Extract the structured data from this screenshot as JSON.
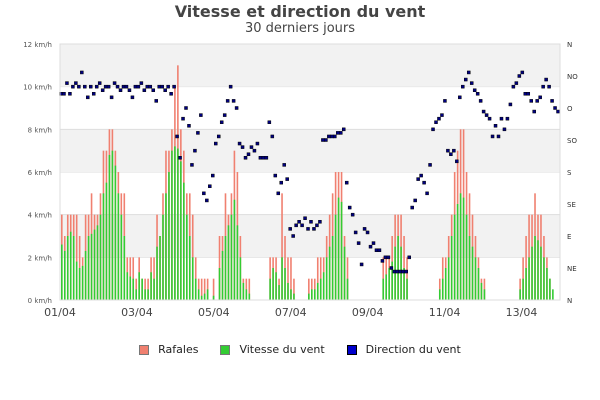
{
  "chart_data": {
    "type": "bar+scatter",
    "title": "Vitesse et direction du vent",
    "subtitle": "30 derniers jours",
    "xlabel": "",
    "ylabel_left": "km/h",
    "ylabel_right": "Direction",
    "ylim": [
      0,
      12
    ],
    "y_ticks": [
      "0 km/h",
      "2 km/h",
      "4 km/h",
      "6 km/h",
      "8 km/h",
      "10 km/h",
      "12 km/h"
    ],
    "y2_ticks": [
      "N",
      "NE",
      "E",
      "SE",
      "S",
      "SO",
      "O",
      "NO",
      "N"
    ],
    "x_ticks": [
      "01/04",
      "03/04",
      "05/04",
      "07/04",
      "09/04",
      "11/04",
      "13/04"
    ],
    "x_range_days": [
      0,
      13
    ],
    "interval_hours": 2,
    "grid": true,
    "legend_position": "bottom",
    "series": [
      {
        "name": "Rafales",
        "type": "bar",
        "color": "#f08070",
        "values": [
          4,
          3,
          4,
          4,
          4,
          4,
          3,
          2,
          4,
          4,
          5,
          4,
          4,
          5,
          7,
          7,
          8,
          8,
          7,
          6,
          5,
          5,
          2,
          2,
          2,
          1,
          2,
          1,
          1,
          1,
          2,
          2,
          4,
          3,
          5,
          7,
          7,
          8,
          10,
          11,
          8,
          7,
          5,
          5,
          4,
          2,
          1,
          1,
          1,
          1,
          0,
          1,
          0,
          3,
          3,
          5,
          4,
          5,
          7,
          6,
          3,
          1,
          1,
          1,
          0,
          0,
          0,
          0,
          0,
          0,
          2,
          2,
          2,
          1,
          5,
          3,
          2,
          2,
          1,
          0,
          0,
          0,
          0,
          1,
          1,
          1,
          2,
          2,
          2,
          3,
          4,
          5,
          6,
          6,
          6,
          3,
          2,
          0,
          0,
          0,
          0,
          0,
          0,
          0,
          0,
          0,
          0,
          0,
          2,
          2,
          2,
          3,
          4,
          4,
          4,
          3,
          2,
          0,
          0,
          0,
          0,
          0,
          0,
          0,
          0,
          0,
          0,
          1,
          2,
          2,
          3,
          4,
          6,
          7,
          8,
          8,
          6,
          5,
          4,
          3,
          2,
          1,
          1,
          0,
          0,
          0,
          0,
          0,
          0,
          0,
          0,
          0,
          0,
          0,
          1,
          2,
          3,
          4,
          4,
          5,
          4,
          4,
          3,
          2,
          1,
          0,
          0,
          0
        ],
        "note": "approximate per 2h slot, estimated from bar heights"
      },
      {
        "name": "Vitesse du vent",
        "type": "bar",
        "color": "#33cc33",
        "values": [
          2.6,
          2.3,
          3,
          3.2,
          3,
          1.8,
          1.5,
          1.6,
          2.3,
          3,
          3.1,
          3.3,
          3.5,
          4,
          5,
          5.5,
          6.8,
          7,
          6.3,
          5,
          4,
          3,
          1.3,
          1.1,
          1,
          0.5,
          1.3,
          1,
          0.5,
          0.5,
          1.3,
          1,
          2.5,
          3,
          4,
          5,
          6,
          7,
          7.2,
          7.1,
          6.5,
          5.5,
          4,
          3,
          2,
          1,
          0.5,
          0.2,
          0.3,
          0.5,
          0,
          0.2,
          0,
          1.5,
          2.3,
          3,
          3.5,
          4,
          4.7,
          3.5,
          2,
          0.8,
          0.5,
          0.3,
          0,
          0,
          0,
          0,
          0,
          0,
          1,
          1.5,
          1.3,
          0.7,
          2,
          1.5,
          0.8,
          0.5,
          0.3,
          0,
          0,
          0,
          0,
          0.3,
          0.5,
          0.5,
          0.8,
          1,
          1.3,
          2,
          2.5,
          3,
          4,
          4.8,
          4.6,
          2.5,
          1,
          0,
          0,
          0,
          0,
          0,
          0,
          0,
          0,
          0,
          0,
          0,
          1,
          1.2,
          1.5,
          1.8,
          2.5,
          3,
          2.5,
          1.5,
          1,
          0,
          0,
          0,
          0,
          0,
          0,
          0,
          0,
          0,
          0,
          0.5,
          1,
          1.5,
          2,
          3,
          4,
          4.5,
          5,
          4.8,
          4,
          3,
          2.5,
          2,
          1.5,
          0.8,
          0.5,
          0,
          0,
          0,
          0,
          0,
          0,
          0,
          0,
          0,
          0,
          0,
          0.5,
          1,
          1.5,
          2,
          2.5,
          3,
          2.8,
          2.5,
          2,
          1.5,
          1,
          0.5,
          0,
          0
        ],
        "note": "approximate per 2h slot"
      },
      {
        "name": "Direction du vent",
        "type": "scatter",
        "color": "#000080",
        "unit": "degrees (0=N, 90=E, 180=S, 270=O)",
        "values": [
          290,
          290,
          305,
          290,
          300,
          305,
          300,
          320,
          300,
          285,
          300,
          290,
          300,
          305,
          295,
          300,
          300,
          285,
          305,
          300,
          295,
          300,
          300,
          295,
          285,
          300,
          300,
          305,
          295,
          300,
          300,
          295,
          280,
          300,
          300,
          295,
          300,
          290,
          300,
          230,
          200,
          255,
          270,
          245,
          190,
          210,
          235,
          260,
          150,
          140,
          160,
          175,
          220,
          230,
          250,
          260,
          280,
          300,
          280,
          270,
          220,
          215,
          200,
          205,
          215,
          210,
          220,
          200,
          200,
          200,
          250,
          230,
          175,
          150,
          165,
          190,
          170,
          100,
          90,
          105,
          110,
          105,
          115,
          100,
          110,
          100,
          105,
          110,
          225,
          225,
          230,
          230,
          230,
          235,
          235,
          240,
          165,
          130,
          120,
          95,
          80,
          50,
          100,
          95,
          75,
          80,
          70,
          70,
          55,
          60,
          60,
          45,
          40,
          40,
          40,
          40,
          40,
          60,
          130,
          140,
          170,
          175,
          165,
          150,
          190,
          240,
          250,
          255,
          260,
          280,
          210,
          205,
          210,
          195,
          285,
          300,
          310,
          320,
          305,
          295,
          290,
          280,
          265,
          260,
          255,
          230,
          245,
          230,
          255,
          240,
          255,
          275,
          300,
          305,
          315,
          320,
          290,
          290,
          280,
          265,
          280,
          285,
          300,
          310,
          300,
          280,
          270,
          265
        ]
      }
    ]
  },
  "legend": {
    "items": [
      {
        "label": "Rafales",
        "color": "#f08070"
      },
      {
        "label": "Vitesse du vent",
        "color": "#33cc33"
      },
      {
        "label": "Direction du vent",
        "color": "#0000cc"
      }
    ]
  },
  "colors": {
    "band": "#f2f2f2",
    "grid": "#dddddd",
    "axis_text": "#444444"
  }
}
